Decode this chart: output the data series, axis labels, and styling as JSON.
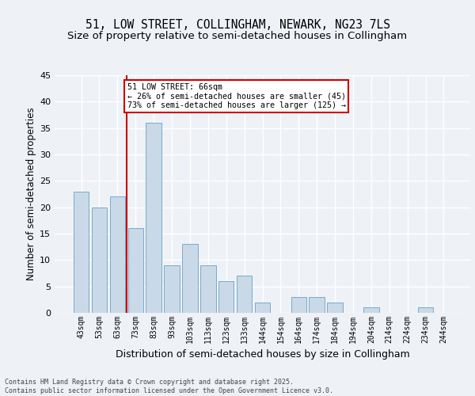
{
  "title1": "51, LOW STREET, COLLINGHAM, NEWARK, NG23 7LS",
  "title2": "Size of property relative to semi-detached houses in Collingham",
  "xlabel": "Distribution of semi-detached houses by size in Collingham",
  "ylabel": "Number of semi-detached properties",
  "categories": [
    "43sqm",
    "53sqm",
    "63sqm",
    "73sqm",
    "83sqm",
    "93sqm",
    "103sqm",
    "113sqm",
    "123sqm",
    "133sqm",
    "144sqm",
    "154sqm",
    "164sqm",
    "174sqm",
    "184sqm",
    "194sqm",
    "204sqm",
    "214sqm",
    "224sqm",
    "234sqm",
    "244sqm"
  ],
  "values": [
    23,
    20,
    22,
    16,
    36,
    9,
    13,
    9,
    6,
    7,
    2,
    0,
    3,
    3,
    2,
    0,
    1,
    0,
    0,
    1,
    0
  ],
  "bar_color": "#c9d9e8",
  "bar_edge_color": "#7aaac8",
  "background_color": "#eef2f7",
  "grid_color": "#ffffff",
  "vline_color": "#cc0000",
  "vline_x": 2.5,
  "annotation_title": "51 LOW STREET: 66sqm",
  "annotation_line1": "← 26% of semi-detached houses are smaller (45)",
  "annotation_line2": "73% of semi-detached houses are larger (125) →",
  "annotation_box_color": "#ffffff",
  "annotation_box_edge": "#cc0000",
  "ylim": [
    0,
    45
  ],
  "yticks": [
    0,
    5,
    10,
    15,
    20,
    25,
    30,
    35,
    40,
    45
  ],
  "footer": "Contains HM Land Registry data © Crown copyright and database right 2025.\nContains public sector information licensed under the Open Government Licence v3.0.",
  "title_fontsize": 10.5,
  "subtitle_fontsize": 9.5,
  "xlabel_fontsize": 9,
  "ylabel_fontsize": 8.5
}
